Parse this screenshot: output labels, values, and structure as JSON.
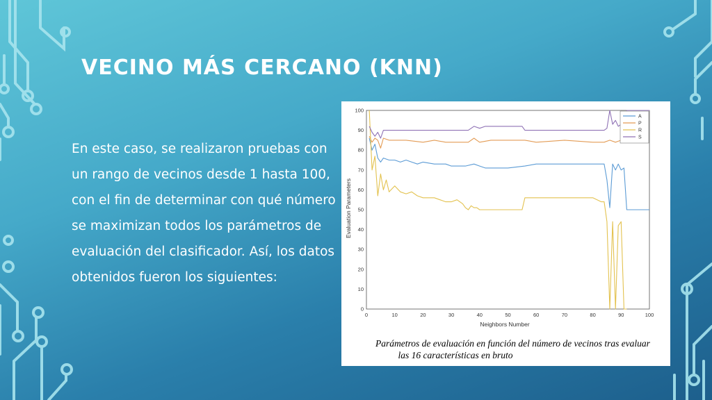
{
  "slide": {
    "title": "VECINO MÁS CERCANO (KNN)",
    "body": "En este caso, se realizaron pruebas con un rango de vecinos desde 1 hasta 100, con el fin de determinar con qué número se maximizan todos los parámetros de evaluación del clasificador. Así, los datos obtenidos fueron los siguientes:",
    "caption_line1": "Parámetros de evaluación en función del número de vecinos tras evaluar",
    "caption_line2": "las 16 características en bruto"
  },
  "colors": {
    "background_top": "#5fc6d8",
    "background_bottom": "#1d5f8c",
    "circuit": "#a7e4ee",
    "A": "#5b9bd5",
    "P": "#e39b54",
    "R": "#e3c24f",
    "S": "#8f72b5"
  },
  "chart_data": {
    "type": "line",
    "title": "",
    "xlabel": "Neighbors Number",
    "ylabel": "Evaluation Parameters",
    "xlim": [
      0,
      100
    ],
    "ylim": [
      0,
      100
    ],
    "xticks": [
      0,
      10,
      20,
      30,
      40,
      50,
      60,
      70,
      80,
      90,
      100
    ],
    "yticks": [
      0,
      10,
      20,
      30,
      40,
      50,
      60,
      70,
      80,
      90,
      100
    ],
    "grid": true,
    "legend_position": "top-right",
    "series": [
      {
        "name": "A",
        "points": [
          [
            1,
            86
          ],
          [
            2,
            80
          ],
          [
            3,
            83
          ],
          [
            4,
            76
          ],
          [
            5,
            74
          ],
          [
            6,
            76
          ],
          [
            8,
            75
          ],
          [
            10,
            75
          ],
          [
            12,
            74
          ],
          [
            14,
            75
          ],
          [
            16,
            74
          ],
          [
            18,
            73
          ],
          [
            20,
            74
          ],
          [
            24,
            73
          ],
          [
            28,
            73
          ],
          [
            30,
            72
          ],
          [
            35,
            72
          ],
          [
            38,
            73
          ],
          [
            40,
            72
          ],
          [
            42,
            71
          ],
          [
            50,
            71
          ],
          [
            56,
            72
          ],
          [
            60,
            73
          ],
          [
            70,
            73
          ],
          [
            80,
            73
          ],
          [
            84,
            73
          ],
          [
            85,
            65
          ],
          [
            86,
            51
          ],
          [
            87,
            73
          ],
          [
            88,
            70
          ],
          [
            89,
            73
          ],
          [
            90,
            70
          ],
          [
            91,
            71
          ],
          [
            92,
            50
          ],
          [
            100,
            50
          ]
        ]
      },
      {
        "name": "P",
        "points": [
          [
            1,
            87
          ],
          [
            2,
            84
          ],
          [
            3,
            86
          ],
          [
            4,
            85
          ],
          [
            5,
            81
          ],
          [
            6,
            86
          ],
          [
            8,
            85
          ],
          [
            10,
            85
          ],
          [
            14,
            85
          ],
          [
            20,
            84
          ],
          [
            24,
            85
          ],
          [
            28,
            84
          ],
          [
            30,
            84
          ],
          [
            34,
            84
          ],
          [
            36,
            84
          ],
          [
            38,
            86
          ],
          [
            39,
            85
          ],
          [
            40,
            84
          ],
          [
            44,
            85
          ],
          [
            52,
            85
          ],
          [
            56,
            85
          ],
          [
            60,
            84
          ],
          [
            70,
            85
          ],
          [
            80,
            84
          ],
          [
            84,
            84
          ],
          [
            86,
            85
          ],
          [
            88,
            84
          ],
          [
            90,
            85
          ],
          [
            92,
            85
          ]
        ]
      },
      {
        "name": "R",
        "points": [
          [
            1,
            100
          ],
          [
            2,
            70
          ],
          [
            3,
            77
          ],
          [
            4,
            57
          ],
          [
            5,
            68
          ],
          [
            6,
            60
          ],
          [
            7,
            65
          ],
          [
            8,
            59
          ],
          [
            10,
            62
          ],
          [
            12,
            59
          ],
          [
            14,
            58
          ],
          [
            16,
            59
          ],
          [
            18,
            57
          ],
          [
            20,
            56
          ],
          [
            22,
            56
          ],
          [
            24,
            56
          ],
          [
            26,
            55
          ],
          [
            28,
            54
          ],
          [
            30,
            54
          ],
          [
            32,
            55
          ],
          [
            34,
            53
          ],
          [
            35,
            51
          ],
          [
            36,
            50
          ],
          [
            37,
            52
          ],
          [
            38,
            51
          ],
          [
            39,
            51
          ],
          [
            40,
            50
          ],
          [
            50,
            50
          ],
          [
            55,
            50
          ],
          [
            56,
            56
          ],
          [
            80,
            56
          ],
          [
            83,
            54
          ],
          [
            84,
            54
          ],
          [
            85,
            44
          ],
          [
            86,
            0
          ],
          [
            87,
            44
          ],
          [
            88,
            0
          ],
          [
            89,
            42
          ],
          [
            90,
            44
          ],
          [
            91,
            0
          ],
          [
            92,
            0
          ]
        ]
      },
      {
        "name": "S",
        "points": [
          [
            1,
            92
          ],
          [
            2,
            89
          ],
          [
            3,
            87
          ],
          [
            4,
            89
          ],
          [
            5,
            86
          ],
          [
            6,
            90
          ],
          [
            10,
            90
          ],
          [
            20,
            90
          ],
          [
            30,
            90
          ],
          [
            36,
            90
          ],
          [
            38,
            92
          ],
          [
            40,
            91
          ],
          [
            42,
            92
          ],
          [
            55,
            92
          ],
          [
            56,
            90
          ],
          [
            70,
            90
          ],
          [
            80,
            90
          ],
          [
            84,
            90
          ],
          [
            85,
            91
          ],
          [
            86,
            100
          ],
          [
            87,
            93
          ],
          [
            88,
            95
          ],
          [
            89,
            92
          ],
          [
            90,
            93
          ],
          [
            91,
            91
          ],
          [
            92,
            100
          ],
          [
            100,
            100
          ]
        ]
      }
    ]
  }
}
